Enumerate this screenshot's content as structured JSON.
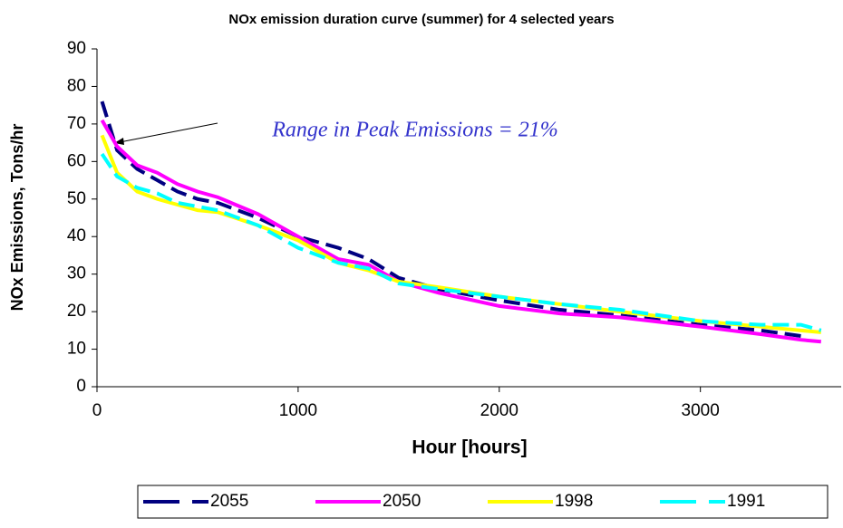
{
  "chart_data": {
    "type": "line",
    "title": "NOx emission duration curve (summer) for 4 selected years",
    "xlabel": "Hour [hours]",
    "ylabel": "NOx Emissions, Tons/hr",
    "annotation": "Range in Peak Emissions = 21%",
    "x": [
      25,
      100,
      200,
      300,
      400,
      500,
      600,
      800,
      1000,
      1200,
      1350,
      1500,
      1700,
      2000,
      2300,
      2600,
      3000,
      3300,
      3500,
      3600
    ],
    "series": [
      {
        "name": "2055",
        "color": "#000080",
        "dashed": true,
        "values": [
          76,
          63,
          58,
          55,
          52,
          50,
          49,
          45,
          40,
          37,
          34,
          29,
          26,
          23,
          20.5,
          19,
          16.5,
          15,
          13.5,
          null
        ]
      },
      {
        "name": "2050",
        "color": "#ff00ff",
        "dashed": false,
        "values": [
          71,
          64,
          59,
          57,
          54,
          52,
          50.5,
          46,
          40,
          34,
          32.5,
          28,
          25,
          21.5,
          19.5,
          18.5,
          16,
          14,
          12.5,
          12
        ]
      },
      {
        "name": "1998",
        "color": "#ffff00",
        "dashed": false,
        "values": [
          67,
          57,
          52,
          50,
          48.5,
          47,
          46.5,
          43,
          39,
          33,
          31,
          28,
          26.5,
          24,
          22,
          20,
          17.5,
          16,
          15,
          14.5
        ]
      },
      {
        "name": "1991",
        "color": "#00ffff",
        "dashed": true,
        "values": [
          62,
          56,
          53,
          51.5,
          49,
          48,
          47,
          43,
          37,
          33,
          31.5,
          27.5,
          26,
          24,
          22,
          20.5,
          17.5,
          16.5,
          16.5,
          15
        ]
      }
    ],
    "xlim": [
      0,
      3700
    ],
    "xticks": [
      0,
      1000,
      2000,
      3000
    ],
    "ylim": [
      0,
      90
    ],
    "yticks": [
      0,
      10,
      20,
      30,
      40,
      50,
      60,
      70,
      80,
      90
    ],
    "grid": false,
    "legend": "bottom"
  }
}
